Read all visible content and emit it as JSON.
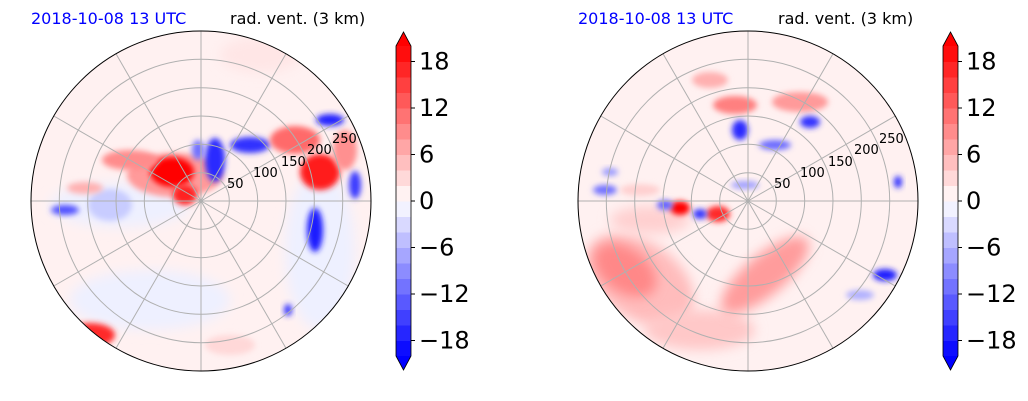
{
  "colors": {
    "time_label": "#0000ff",
    "positive": "#ff0000",
    "negative": "#0000ff",
    "grid": "#b0b0b0",
    "outline": "#000000"
  },
  "chart_data": [
    {
      "type": "polar-contourf",
      "time_label": "2018-10-08 13 UTC",
      "variable_label": "rad. vent. (3 km)",
      "range_rings": [
        50,
        100,
        150,
        200,
        250
      ],
      "range_max": 300,
      "azimuth_spokes_deg": [
        0,
        30,
        60,
        90,
        120,
        150,
        180,
        210,
        240,
        270,
        300,
        330
      ],
      "grid": true,
      "colormap": "bwr",
      "colorbar": {
        "ticks": [
          -18,
          -12,
          -6,
          0,
          6,
          12,
          18
        ],
        "tick_labels": [
          "−18",
          "−12",
          "−6",
          "0",
          "6",
          "12",
          "18"
        ],
        "vmin": -20,
        "vmax": 20,
        "levels": 20,
        "extend": "both"
      }
    },
    {
      "type": "polar-contourf",
      "time_label": "2018-10-08 13 UTC",
      "variable_label": "rad. vent. (3 km)",
      "range_rings": [
        50,
        100,
        150,
        200,
        250
      ],
      "range_max": 300,
      "azimuth_spokes_deg": [
        0,
        30,
        60,
        90,
        120,
        150,
        180,
        210,
        240,
        270,
        300,
        330
      ],
      "grid": true,
      "colormap": "bwr",
      "colorbar": {
        "ticks": [
          -18,
          -12,
          -6,
          0,
          6,
          12,
          18
        ],
        "tick_labels": [
          "−18",
          "−12",
          "−6",
          "0",
          "6",
          "12",
          "18"
        ],
        "vmin": -20,
        "vmax": 20,
        "levels": 20,
        "extend": "both"
      }
    }
  ]
}
